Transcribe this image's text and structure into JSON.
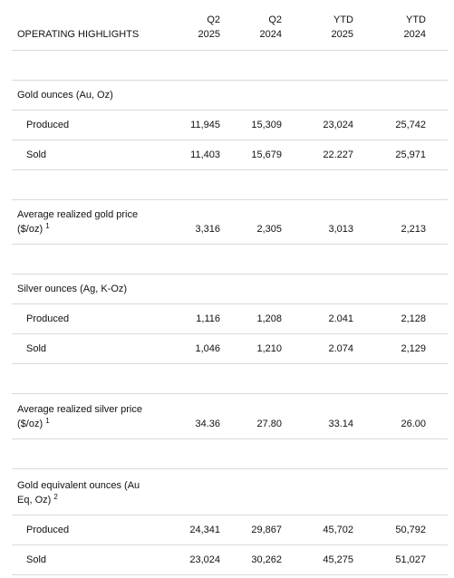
{
  "header": {
    "title": "OPERATING HIGHLIGHTS",
    "columns": [
      {
        "line1": "Q2",
        "line2": "2025"
      },
      {
        "line1": "Q2",
        "line2": "2024"
      },
      {
        "line1": "YTD",
        "line2": "2025"
      },
      {
        "line1": "YTD",
        "line2": "2024"
      }
    ]
  },
  "sections": {
    "gold": {
      "title": "Gold ounces (Au, Oz)",
      "produced": {
        "label": "Produced",
        "values": [
          "11,945",
          "15,309",
          "23,024",
          "25,742"
        ]
      },
      "sold": {
        "label": "Sold",
        "values": [
          "11,403",
          "15,679",
          "22.227",
          "25,971"
        ]
      }
    },
    "gold_price": {
      "line1": "Average realized gold price",
      "line2": "($/oz)",
      "sup": "1",
      "values": [
        "3,316",
        "2,305",
        "3,013",
        "2,213"
      ]
    },
    "silver": {
      "title": "Silver ounces (Ag, K-Oz)",
      "produced": {
        "label": "Produced",
        "values": [
          "1,116",
          "1,208",
          "2.041",
          "2,128"
        ]
      },
      "sold": {
        "label": "Sold",
        "values": [
          "1,046",
          "1,210",
          "2.074",
          "2,129"
        ]
      }
    },
    "silver_price": {
      "line1": "Average realized silver price",
      "line2": "($/oz)",
      "sup": "1",
      "values": [
        "34.36",
        "27.80",
        "33.14",
        "26.00"
      ]
    },
    "gold_eq": {
      "line1": "Gold equivalent ounces (Au",
      "line2": "Eq, Oz)",
      "sup": "2",
      "produced": {
        "label": "Produced",
        "values": [
          "24,341",
          "29,867",
          "45,702",
          "50,792"
        ]
      },
      "sold": {
        "label": "Sold",
        "values": [
          "23,024",
          "30,262",
          "45,275",
          "51,027"
        ]
      }
    }
  }
}
